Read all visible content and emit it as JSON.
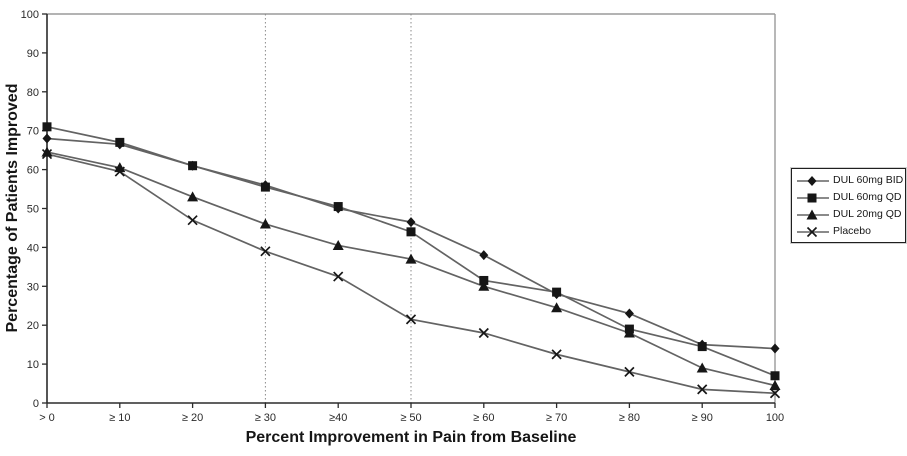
{
  "chart_data": {
    "type": "line",
    "title": "",
    "xlabel": "Percent Improvement in Pain from Baseline",
    "ylabel": "Percentage of Patients Improved",
    "categories": [
      "> 0",
      "≥ 10",
      "≥ 20",
      "≥ 30",
      "≥40",
      "≥ 50",
      "≥ 60",
      "≥ 70",
      "≥ 80",
      "≥ 90",
      "100"
    ],
    "x_values": [
      0,
      10,
      20,
      30,
      40,
      50,
      60,
      70,
      80,
      90,
      100
    ],
    "yticks": [
      0,
      10,
      20,
      30,
      40,
      50,
      60,
      70,
      80,
      90,
      100
    ],
    "ylim": [
      0,
      100
    ],
    "grid": "off",
    "reference_lines": "vertical dashed lines at ≥30 and ≥50 thresholds",
    "dashed_line_indices": [
      3,
      5
    ],
    "legend_position": "right-outside",
    "series": [
      {
        "name": "DUL 60mg BID",
        "marker": "diamond",
        "values": [
          68,
          66.5,
          61,
          56,
          50,
          46.5,
          38,
          28,
          23,
          15,
          14
        ]
      },
      {
        "name": "DUL 60mg QD",
        "marker": "square",
        "values": [
          71,
          67,
          61,
          55.5,
          50.5,
          44,
          31.5,
          28.5,
          19,
          14.5,
          7
        ]
      },
      {
        "name": "DUL 20mg QD",
        "marker": "triangle",
        "values": [
          64.5,
          60.5,
          53,
          46,
          40.5,
          37,
          30,
          24.5,
          18,
          9,
          4.5
        ]
      },
      {
        "name": "Placebo",
        "marker": "x",
        "values": [
          64,
          59.5,
          47,
          39,
          32.5,
          21.5,
          18,
          12.5,
          8,
          3.5,
          2.5
        ]
      }
    ],
    "colors": {
      "line": "#636363",
      "marker": "#161616",
      "axis": "#2b2b2b",
      "border_light": "#9a9a9a",
      "dashed": "#8a8a8a",
      "legend_border": "#1f1f1f",
      "background": "#ffffff"
    }
  }
}
